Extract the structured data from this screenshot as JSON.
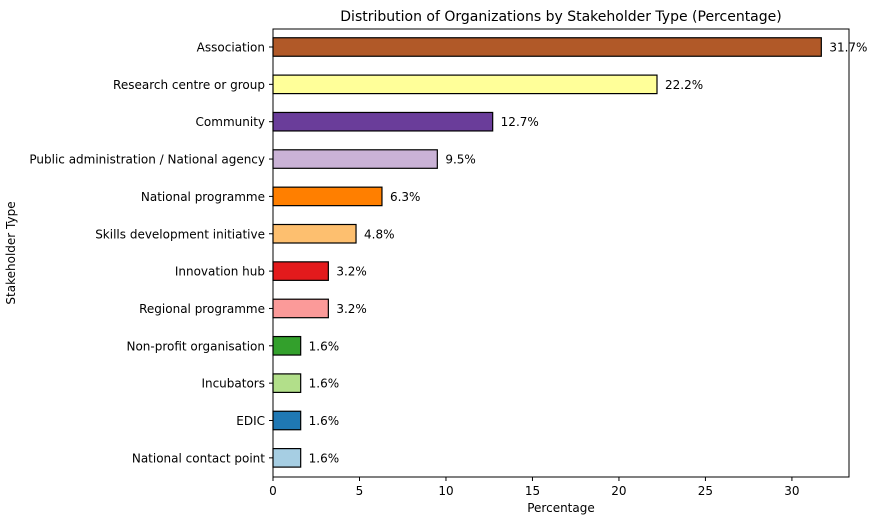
{
  "chart_data": {
    "type": "bar",
    "orientation": "horizontal",
    "title": "Distribution of Organizations by Stakeholder Type (Percentage)",
    "xlabel": "Percentage",
    "ylabel": "Stakeholder Type",
    "xlim": [
      0,
      33.3
    ],
    "xticks": [
      0,
      5,
      10,
      15,
      20,
      25,
      30
    ],
    "grid": false,
    "legend": "none",
    "categories": [
      "Association",
      "Research centre or group",
      "Community",
      "Public administration / National agency",
      "National programme",
      "Skills development initiative",
      "Innovation hub",
      "Regional programme",
      "Non-profit organisation",
      "Incubators",
      "EDIC",
      "National contact point"
    ],
    "values": [
      31.7,
      22.2,
      12.7,
      9.5,
      6.3,
      4.8,
      3.2,
      3.2,
      1.6,
      1.6,
      1.6,
      1.6
    ],
    "data_labels": [
      "31.7%",
      "22.2%",
      "12.7%",
      "9.5%",
      "6.3%",
      "4.8%",
      "3.2%",
      "3.2%",
      "1.6%",
      "1.6%",
      "1.6%",
      "1.6%"
    ],
    "colors": [
      "#b15928",
      "#ffff99",
      "#6a3d9a",
      "#cab2d6",
      "#ff7f00",
      "#fdbf6f",
      "#e31a1c",
      "#fb9a99",
      "#33a02c",
      "#b2df8a",
      "#1f78b4",
      "#a6cee3"
    ]
  }
}
